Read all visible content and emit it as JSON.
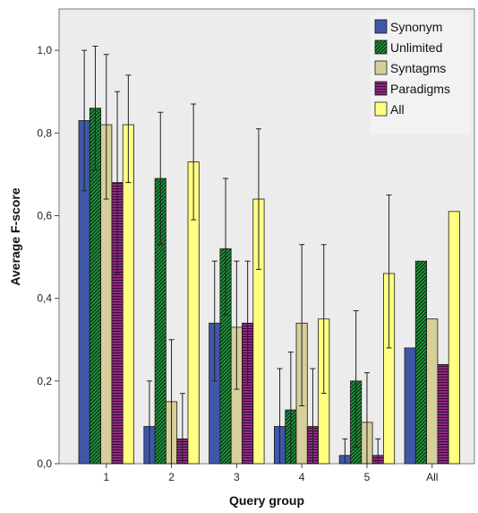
{
  "chart_data": {
    "type": "bar",
    "title": "",
    "xlabel": "Query group",
    "ylabel": "Average F-score",
    "categories": [
      "1",
      "2",
      "3",
      "4",
      "5",
      "All"
    ],
    "ylim": [
      0,
      1.1
    ],
    "yticks": [
      "0,0",
      "0,2",
      "0,4",
      "0,6",
      "0,8",
      "1,0"
    ],
    "grid": false,
    "legend_position": "top-right",
    "series": [
      {
        "name": "Synonym",
        "color": "#3f57a8",
        "pattern": "solid",
        "values": [
          0.83,
          0.09,
          0.34,
          0.09,
          0.02,
          0.28
        ],
        "error": [
          [
            0.66,
            1.0
          ],
          [
            0.0,
            0.2
          ],
          [
            0.2,
            0.49
          ],
          [
            0.0,
            0.23
          ],
          [
            0.0,
            0.06
          ],
          null
        ]
      },
      {
        "name": "Unlimited",
        "color": "#1c9a3b",
        "pattern": "diagonal",
        "values": [
          0.86,
          0.69,
          0.52,
          0.13,
          0.2,
          0.49
        ],
        "error": [
          [
            0.71,
            1.01
          ],
          [
            0.53,
            0.85
          ],
          [
            0.36,
            0.69
          ],
          [
            0.0,
            0.27
          ],
          [
            0.04,
            0.37
          ],
          null
        ]
      },
      {
        "name": "Syntagms",
        "color": "#d6cf9a",
        "pattern": "solid",
        "values": [
          0.82,
          0.15,
          0.33,
          0.34,
          0.1,
          0.35
        ],
        "error": [
          [
            0.64,
            0.99
          ],
          [
            0.0,
            0.3
          ],
          [
            0.18,
            0.49
          ],
          [
            0.14,
            0.53
          ],
          [
            0.0,
            0.22
          ],
          null
        ]
      },
      {
        "name": "Paradigms",
        "color": "#8e2a83",
        "pattern": "horizontal",
        "values": [
          0.68,
          0.06,
          0.34,
          0.09,
          0.02,
          0.24
        ],
        "error": [
          [
            0.46,
            0.9
          ],
          [
            0.0,
            0.17
          ],
          [
            0.19,
            0.49
          ],
          [
            0.0,
            0.23
          ],
          [
            0.0,
            0.06
          ],
          null
        ]
      },
      {
        "name": "All",
        "color": "#ffff80",
        "pattern": "solid",
        "values": [
          0.82,
          0.73,
          0.64,
          0.35,
          0.46,
          0.61
        ],
        "error": [
          [
            0.68,
            0.94
          ],
          [
            0.59,
            0.87
          ],
          [
            0.47,
            0.81
          ],
          [
            0.17,
            0.53
          ],
          [
            0.28,
            0.65
          ],
          null
        ]
      }
    ]
  }
}
